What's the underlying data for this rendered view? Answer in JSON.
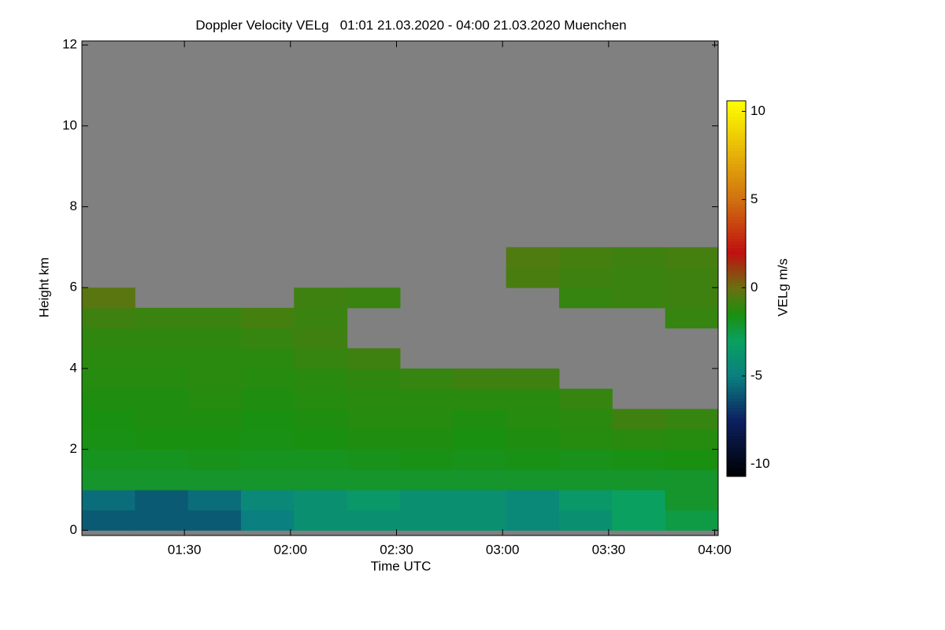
{
  "chart_data": {
    "type": "heatmap",
    "title": "Doppler Velocity VELg   01:01 21.03.2020 - 04:00 21.03.2020 Muenchen",
    "xlabel": "Time UTC",
    "ylabel": "Height km",
    "colorbar_label": "VELg m/s",
    "background_color": "#808080",
    "xlim": [
      61,
      241
    ],
    "xticks": [
      {
        "value": 90,
        "label": "01:30"
      },
      {
        "value": 120,
        "label": "02:00"
      },
      {
        "value": 150,
        "label": "02:30"
      },
      {
        "value": 180,
        "label": "03:00"
      },
      {
        "value": 210,
        "label": "03:30"
      },
      {
        "value": 240,
        "label": "04:00"
      }
    ],
    "ylim": [
      -0.13,
      12.1
    ],
    "yticks": [
      0,
      2,
      4,
      6,
      8,
      10,
      12
    ],
    "zlim": [
      -10.7,
      10.6
    ],
    "zticks": [
      -10,
      -5,
      0,
      5,
      10
    ],
    "colormap": [
      {
        "value": -10.7,
        "color": "#000000"
      },
      {
        "value": -7.5,
        "color": "#0d2060"
      },
      {
        "value": -5,
        "color": "#0a8080"
      },
      {
        "value": -3,
        "color": "#0aa060"
      },
      {
        "value": -1.5,
        "color": "#1a9010"
      },
      {
        "value": 0,
        "color": "#6a7010"
      },
      {
        "value": 2,
        "color": "#c01010"
      },
      {
        "value": 5,
        "color": "#d07010"
      },
      {
        "value": 10.6,
        "color": "#ffff00"
      }
    ],
    "x": [
      68.5,
      83.5,
      98.5,
      113.5,
      128.5,
      143.5,
      158.5,
      173.5,
      188.5,
      203.5,
      218.5,
      233.5
    ],
    "y": [
      0.25,
      0.75,
      1.25,
      1.75,
      2.25,
      2.75,
      3.25,
      3.75,
      4.25,
      4.75,
      5.25,
      5.75,
      6.25,
      6.75
    ],
    "z": [
      [
        -6,
        -6,
        -6,
        -5,
        -4,
        -4,
        -4,
        -4,
        -4.5,
        -4,
        -3,
        -2.5
      ],
      [
        -5.5,
        -6,
        -5.5,
        -4.5,
        -4,
        -3.5,
        -4,
        -4,
        -4.5,
        -3.5,
        -3,
        -2
      ],
      [
        -2,
        -2,
        -2,
        -2,
        -2,
        -2,
        -2,
        -2,
        -2,
        -2,
        -2,
        -2
      ],
      [
        -1.8,
        -1.8,
        -1.7,
        -1.8,
        -1.8,
        -1.7,
        -1.6,
        -1.7,
        -1.6,
        -1.7,
        -1.6,
        -1.5
      ],
      [
        -1.6,
        -1.5,
        -1.5,
        -1.6,
        -1.5,
        -1.4,
        -1.4,
        -1.5,
        -1.4,
        -1.3,
        -1.2,
        -1.3
      ],
      [
        -1.5,
        -1.4,
        -1.4,
        -1.5,
        -1.4,
        -1.3,
        -1.3,
        -1.4,
        -1.3,
        -1.2,
        -0.8,
        -1
      ],
      [
        -1.4,
        -1.4,
        -1.3,
        -1.4,
        -1.3,
        -1.2,
        -1.2,
        -1.2,
        -1.2,
        -1,
        null,
        null
      ],
      [
        -1.3,
        -1.3,
        -1.2,
        -1.3,
        -1.2,
        -1.1,
        -1,
        -0.8,
        -0.8,
        null,
        null,
        null
      ],
      [
        -1.2,
        -1.2,
        -1.2,
        -1.2,
        -1,
        -0.8,
        null,
        null,
        null,
        null,
        null,
        null
      ],
      [
        -1.1,
        -1.1,
        -1.1,
        -1,
        -0.8,
        null,
        null,
        null,
        null,
        null,
        null,
        null
      ],
      [
        -0.8,
        -0.9,
        -0.9,
        -0.7,
        -0.9,
        null,
        null,
        null,
        null,
        null,
        null,
        -1
      ],
      [
        -0.3,
        null,
        null,
        null,
        -0.8,
        -0.9,
        null,
        null,
        null,
        -1,
        -0.9,
        -0.8
      ],
      [
        null,
        null,
        null,
        null,
        null,
        null,
        null,
        null,
        -0.6,
        -0.8,
        -0.9,
        -0.8
      ],
      [
        null,
        null,
        null,
        null,
        null,
        null,
        null,
        null,
        -0.5,
        -0.7,
        -0.8,
        -0.7
      ]
    ]
  }
}
